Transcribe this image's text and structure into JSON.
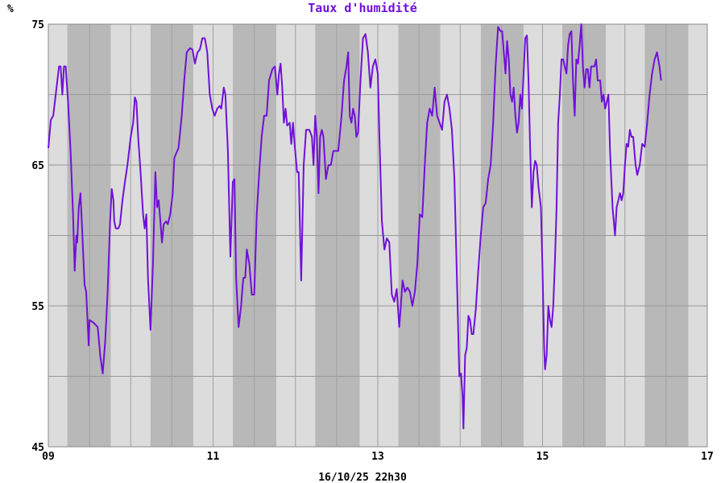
{
  "chart_data": {
    "type": "line",
    "title": "Taux d'humidité",
    "ylabel": "%",
    "footer": "16/10/25 22h30",
    "ylim": [
      45,
      75
    ],
    "y_ticks": [
      "45",
      "55",
      "65",
      "75"
    ],
    "y_gridlines": [
      50,
      55,
      60,
      65,
      70
    ],
    "xlim": [
      9,
      17
    ],
    "x_ticks": [
      {
        "value": 9,
        "label": "09"
      },
      {
        "value": 11,
        "label": "11"
      },
      {
        "value": 13,
        "label": "13"
      },
      {
        "value": 15,
        "label": "15"
      },
      {
        "value": 17,
        "label": "17"
      }
    ],
    "grid": true,
    "series": [
      {
        "color": "#7010d8",
        "points": [
          [
            9.0,
            66.2
          ],
          [
            9.03,
            68.2
          ],
          [
            9.06,
            68.5
          ],
          [
            9.1,
            70.5
          ],
          [
            9.13,
            72.0
          ],
          [
            9.15,
            72.0
          ],
          [
            9.17,
            70.0
          ],
          [
            9.19,
            72.0
          ],
          [
            9.21,
            72.0
          ],
          [
            9.24,
            69.5
          ],
          [
            9.27,
            66.0
          ],
          [
            9.3,
            61.5
          ],
          [
            9.32,
            57.5
          ],
          [
            9.34,
            60.0
          ],
          [
            9.35,
            59.5
          ],
          [
            9.37,
            62.0
          ],
          [
            9.39,
            63.0
          ],
          [
            9.41,
            60.5
          ],
          [
            9.44,
            56.5
          ],
          [
            9.46,
            56.0
          ],
          [
            9.49,
            52.2
          ],
          [
            9.5,
            54.0
          ],
          [
            9.55,
            53.8
          ],
          [
            9.6,
            53.5
          ],
          [
            9.63,
            51.5
          ],
          [
            9.66,
            50.2
          ],
          [
            9.69,
            52.5
          ],
          [
            9.72,
            56.0
          ],
          [
            9.75,
            61.0
          ],
          [
            9.77,
            63.3
          ],
          [
            9.79,
            62.5
          ],
          [
            9.8,
            61.0
          ],
          [
            9.82,
            60.5
          ],
          [
            9.85,
            60.5
          ],
          [
            9.87,
            60.8
          ],
          [
            9.9,
            62.5
          ],
          [
            9.93,
            63.8
          ],
          [
            9.96,
            65.0
          ],
          [
            10.0,
            67.0
          ],
          [
            10.03,
            68.0
          ],
          [
            10.05,
            69.8
          ],
          [
            10.07,
            69.5
          ],
          [
            10.09,
            67.0
          ],
          [
            10.12,
            64.5
          ],
          [
            10.15,
            61.5
          ],
          [
            10.17,
            60.5
          ],
          [
            10.19,
            61.5
          ],
          [
            10.21,
            57.0
          ],
          [
            10.24,
            53.3
          ],
          [
            10.27,
            58.0
          ],
          [
            10.3,
            64.5
          ],
          [
            10.32,
            62.0
          ],
          [
            10.34,
            62.5
          ],
          [
            10.36,
            61.0
          ],
          [
            10.38,
            59.5
          ],
          [
            10.4,
            60.8
          ],
          [
            10.43,
            61.0
          ],
          [
            10.45,
            60.8
          ],
          [
            10.48,
            61.5
          ],
          [
            10.51,
            63.0
          ],
          [
            10.53,
            65.5
          ],
          [
            10.55,
            65.8
          ],
          [
            10.58,
            66.2
          ],
          [
            10.62,
            68.5
          ],
          [
            10.65,
            71.0
          ],
          [
            10.68,
            73.0
          ],
          [
            10.72,
            73.3
          ],
          [
            10.75,
            73.2
          ],
          [
            10.78,
            72.2
          ],
          [
            10.81,
            73.0
          ],
          [
            10.84,
            73.2
          ],
          [
            10.87,
            74.0
          ],
          [
            10.9,
            74.0
          ],
          [
            10.93,
            73.0
          ],
          [
            10.96,
            70.0
          ],
          [
            10.99,
            69.0
          ],
          [
            11.02,
            68.5
          ],
          [
            11.05,
            69.0
          ],
          [
            11.08,
            69.2
          ],
          [
            11.1,
            69.0
          ],
          [
            11.13,
            70.5
          ],
          [
            11.15,
            70.0
          ],
          [
            11.18,
            66.0
          ],
          [
            11.21,
            58.5
          ],
          [
            11.24,
            63.8
          ],
          [
            11.26,
            64.0
          ],
          [
            11.28,
            57.0
          ],
          [
            11.31,
            53.5
          ],
          [
            11.34,
            55.0
          ],
          [
            11.36,
            56.5
          ],
          [
            11.37,
            57.0
          ],
          [
            11.39,
            57.0
          ],
          [
            11.41,
            59.0
          ],
          [
            11.44,
            58.0
          ],
          [
            11.47,
            55.8
          ],
          [
            11.5,
            55.8
          ],
          [
            11.53,
            61.5
          ],
          [
            11.56,
            64.5
          ],
          [
            11.59,
            67.0
          ],
          [
            11.62,
            68.5
          ],
          [
            11.65,
            68.5
          ],
          [
            11.68,
            71.0
          ],
          [
            11.72,
            71.8
          ],
          [
            11.75,
            72.0
          ],
          [
            11.78,
            70.0
          ],
          [
            11.8,
            71.5
          ],
          [
            11.82,
            72.2
          ],
          [
            11.84,
            70.5
          ],
          [
            11.86,
            68.0
          ],
          [
            11.88,
            69.0
          ],
          [
            11.9,
            67.8
          ],
          [
            11.93,
            68.0
          ],
          [
            11.95,
            66.5
          ],
          [
            11.97,
            68.0
          ],
          [
            11.99,
            66.5
          ],
          [
            12.02,
            64.5
          ],
          [
            12.04,
            64.5
          ],
          [
            12.07,
            56.8
          ],
          [
            12.1,
            65.0
          ],
          [
            12.13,
            67.5
          ],
          [
            12.17,
            67.5
          ],
          [
            12.2,
            67.0
          ],
          [
            12.22,
            65.0
          ],
          [
            12.24,
            68.5
          ],
          [
            12.26,
            67.0
          ],
          [
            12.28,
            63.0
          ],
          [
            12.3,
            67.0
          ],
          [
            12.32,
            67.5
          ],
          [
            12.34,
            67.0
          ],
          [
            12.37,
            64.0
          ],
          [
            12.4,
            65.0
          ],
          [
            12.43,
            65.0
          ],
          [
            12.46,
            66.0
          ],
          [
            12.49,
            66.0
          ],
          [
            12.52,
            66.0
          ],
          [
            12.56,
            68.5
          ],
          [
            12.59,
            71.0
          ],
          [
            12.62,
            72.0
          ],
          [
            12.64,
            73.0
          ],
          [
            12.66,
            68.5
          ],
          [
            12.68,
            68.0
          ],
          [
            12.7,
            69.0
          ],
          [
            12.72,
            68.5
          ],
          [
            12.74,
            67.0
          ],
          [
            12.76,
            67.3
          ],
          [
            12.79,
            71.0
          ],
          [
            12.82,
            74.0
          ],
          [
            12.85,
            74.3
          ],
          [
            12.88,
            73.0
          ],
          [
            12.91,
            70.5
          ],
          [
            12.94,
            72.0
          ],
          [
            12.97,
            72.5
          ],
          [
            13.0,
            71.5
          ],
          [
            13.02,
            67.0
          ],
          [
            13.05,
            61.0
          ],
          [
            13.08,
            59.0
          ],
          [
            13.11,
            59.8
          ],
          [
            13.14,
            59.5
          ],
          [
            13.17,
            55.8
          ],
          [
            13.2,
            55.3
          ],
          [
            13.23,
            56.2
          ],
          [
            13.26,
            53.5
          ],
          [
            13.28,
            55.0
          ],
          [
            13.3,
            56.8
          ],
          [
            13.33,
            56.0
          ],
          [
            13.36,
            56.3
          ],
          [
            13.39,
            56.0
          ],
          [
            13.42,
            55.0
          ],
          [
            13.45,
            56.0
          ],
          [
            13.48,
            58.0
          ],
          [
            13.51,
            61.5
          ],
          [
            13.54,
            61.3
          ],
          [
            13.57,
            65.0
          ],
          [
            13.6,
            68.0
          ],
          [
            13.63,
            69.0
          ],
          [
            13.66,
            68.5
          ],
          [
            13.69,
            70.5
          ],
          [
            13.72,
            68.5
          ],
          [
            13.75,
            68.0
          ],
          [
            13.78,
            67.5
          ],
          [
            13.81,
            69.5
          ],
          [
            13.84,
            70.0
          ],
          [
            13.87,
            69.0
          ],
          [
            13.9,
            67.5
          ],
          [
            13.93,
            64.0
          ],
          [
            13.96,
            57.0
          ],
          [
            13.99,
            50.0
          ],
          [
            14.01,
            50.2
          ],
          [
            14.03,
            48.5
          ],
          [
            14.04,
            46.3
          ],
          [
            14.06,
            51.5
          ],
          [
            14.08,
            52.0
          ],
          [
            14.1,
            54.3
          ],
          [
            14.12,
            54.0
          ],
          [
            14.14,
            53.0
          ],
          [
            14.16,
            53.0
          ],
          [
            14.19,
            54.8
          ],
          [
            14.22,
            57.5
          ],
          [
            14.25,
            60.0
          ],
          [
            14.28,
            62.0
          ],
          [
            14.31,
            62.3
          ],
          [
            14.34,
            64.0
          ],
          [
            14.37,
            65.0
          ],
          [
            14.4,
            68.0
          ],
          [
            14.43,
            72.0
          ],
          [
            14.46,
            74.8
          ],
          [
            14.49,
            74.5
          ],
          [
            14.51,
            74.5
          ],
          [
            14.53,
            73.0
          ],
          [
            14.55,
            71.5
          ],
          [
            14.57,
            73.8
          ],
          [
            14.59,
            72.5
          ],
          [
            14.61,
            70.0
          ],
          [
            14.63,
            69.5
          ],
          [
            14.65,
            70.5
          ],
          [
            14.67,
            68.5
          ],
          [
            14.69,
            67.3
          ],
          [
            14.71,
            68.0
          ],
          [
            14.73,
            70.0
          ],
          [
            14.75,
            69.0
          ],
          [
            14.77,
            71.5
          ],
          [
            14.79,
            74.0
          ],
          [
            14.81,
            74.2
          ],
          [
            14.83,
            71.0
          ],
          [
            14.85,
            66.0
          ],
          [
            14.87,
            62.0
          ],
          [
            14.89,
            64.5
          ],
          [
            14.91,
            65.3
          ],
          [
            14.93,
            65.0
          ],
          [
            14.95,
            63.5
          ],
          [
            14.98,
            62.0
          ],
          [
            15.0,
            57.5
          ],
          [
            15.02,
            52.0
          ],
          [
            15.03,
            50.5
          ],
          [
            15.05,
            51.5
          ],
          [
            15.07,
            55.0
          ],
          [
            15.09,
            54.0
          ],
          [
            15.11,
            53.5
          ],
          [
            15.13,
            55.0
          ],
          [
            15.15,
            58.0
          ],
          [
            15.17,
            62.0
          ],
          [
            15.19,
            68.0
          ],
          [
            15.21,
            70.0
          ],
          [
            15.23,
            72.5
          ],
          [
            15.25,
            72.5
          ],
          [
            15.27,
            72.0
          ],
          [
            15.29,
            71.5
          ],
          [
            15.31,
            73.5
          ],
          [
            15.33,
            74.3
          ],
          [
            15.35,
            74.5
          ],
          [
            15.37,
            71.0
          ],
          [
            15.39,
            68.5
          ],
          [
            15.41,
            72.5
          ],
          [
            15.43,
            72.2
          ],
          [
            15.45,
            73.5
          ],
          [
            15.47,
            75.0
          ],
          [
            15.49,
            72.0
          ],
          [
            15.51,
            70.5
          ],
          [
            15.53,
            71.8
          ],
          [
            15.55,
            71.8
          ],
          [
            15.57,
            70.5
          ],
          [
            15.59,
            72.0
          ],
          [
            15.61,
            72.0
          ],
          [
            15.63,
            72.0
          ],
          [
            15.65,
            72.5
          ],
          [
            15.67,
            71.0
          ],
          [
            15.7,
            71.0
          ],
          [
            15.72,
            69.5
          ],
          [
            15.74,
            70.0
          ],
          [
            15.76,
            69.0
          ],
          [
            15.78,
            69.5
          ],
          [
            15.8,
            70.0
          ],
          [
            15.82,
            66.0
          ],
          [
            15.85,
            62.0
          ],
          [
            15.88,
            60.0
          ],
          [
            15.9,
            62.0
          ],
          [
            15.92,
            62.5
          ],
          [
            15.94,
            63.0
          ],
          [
            15.96,
            62.5
          ],
          [
            15.98,
            63.0
          ],
          [
            16.0,
            65.0
          ],
          [
            16.02,
            66.5
          ],
          [
            16.04,
            66.3
          ],
          [
            16.06,
            67.5
          ],
          [
            16.08,
            67.0
          ],
          [
            16.1,
            67.0
          ],
          [
            16.13,
            65.0
          ],
          [
            16.15,
            64.3
          ],
          [
            16.18,
            65.0
          ],
          [
            16.21,
            66.5
          ],
          [
            16.24,
            66.3
          ],
          [
            16.27,
            68.0
          ],
          [
            16.3,
            70.0
          ],
          [
            16.33,
            71.5
          ],
          [
            16.36,
            72.5
          ],
          [
            16.39,
            73.0
          ],
          [
            16.42,
            72.0
          ],
          [
            16.44,
            71.0
          ]
        ]
      }
    ],
    "bands": {
      "colors": [
        "#dcdcdc",
        "#b8b8b8"
      ],
      "x_edges": [
        9.0,
        9.23,
        9.76,
        10.24,
        10.76,
        11.24,
        11.77,
        12.24,
        12.78,
        13.25,
        13.76,
        14.25,
        14.77,
        15.24,
        15.77,
        16.24,
        16.77,
        17.0
      ]
    }
  }
}
